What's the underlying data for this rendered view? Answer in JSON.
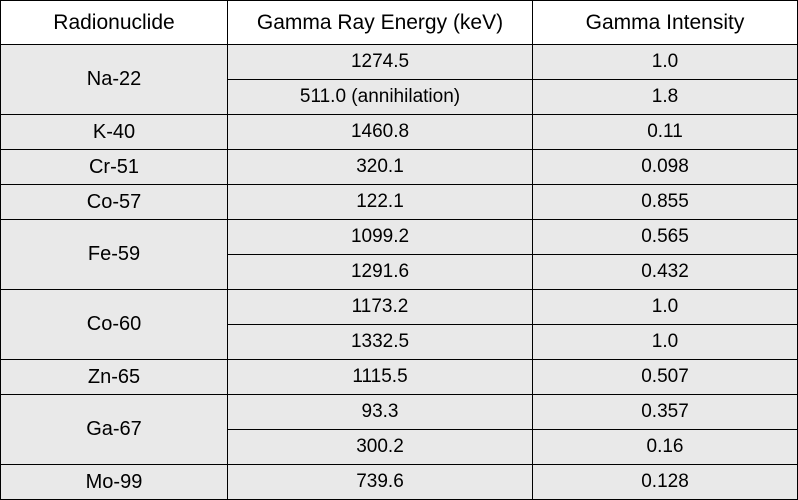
{
  "headers": [
    "Radionuclide",
    "Gamma Ray Energy (keV)",
    "Gamma Intensity"
  ],
  "rows": [
    {
      "nuclide": "Na-22",
      "lines": [
        {
          "energy": "1274.5",
          "intensity": "1.0"
        },
        {
          "energy": "511.0 (annihilation)",
          "intensity": "1.8"
        }
      ]
    },
    {
      "nuclide": "K-40",
      "lines": [
        {
          "energy": "1460.8",
          "intensity": "0.11"
        }
      ]
    },
    {
      "nuclide": "Cr-51",
      "lines": [
        {
          "energy": "320.1",
          "intensity": "0.098"
        }
      ]
    },
    {
      "nuclide": "Co-57",
      "lines": [
        {
          "energy": "122.1",
          "intensity": "0.855"
        }
      ]
    },
    {
      "nuclide": "Fe-59",
      "lines": [
        {
          "energy": "1099.2",
          "intensity": "0.565"
        },
        {
          "energy": "1291.6",
          "intensity": "0.432"
        }
      ]
    },
    {
      "nuclide": "Co-60",
      "lines": [
        {
          "energy": "1173.2",
          "intensity": "1.0"
        },
        {
          "energy": "1332.5",
          "intensity": "1.0"
        }
      ]
    },
    {
      "nuclide": "Zn-65",
      "lines": [
        {
          "energy": "1115.5",
          "intensity": "0.507"
        }
      ]
    },
    {
      "nuclide": "Ga-67",
      "lines": [
        {
          "energy": "93.3",
          "intensity": "0.357"
        },
        {
          "energy": "300.2",
          "intensity": "0.16"
        }
      ]
    },
    {
      "nuclide": "Mo-99",
      "lines": [
        {
          "energy": "739.6",
          "intensity": "0.128"
        }
      ]
    }
  ]
}
